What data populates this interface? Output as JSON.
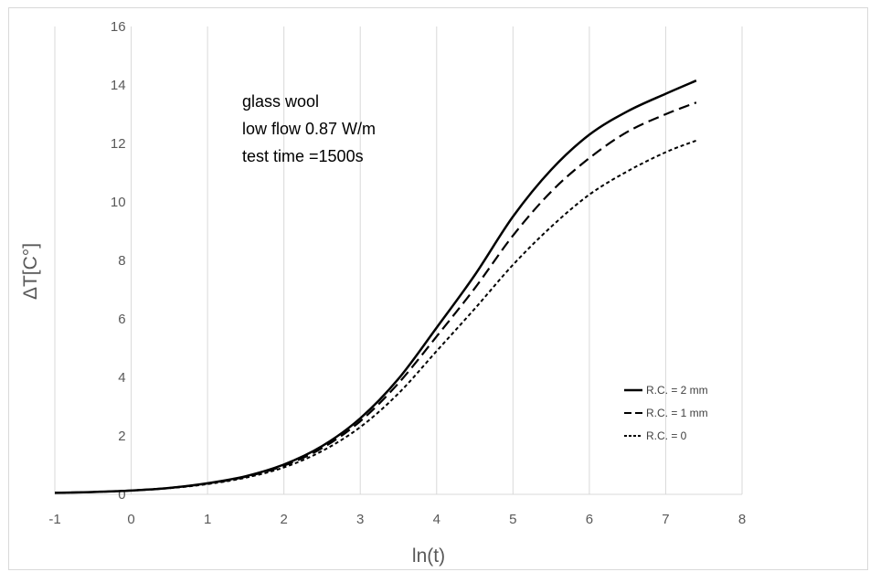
{
  "chart_data": {
    "type": "line",
    "xlabel": "ln(t)",
    "ylabel": "ΔT[C°]",
    "xlim": [
      -1,
      8
    ],
    "ylim": [
      0,
      16
    ],
    "xticks": [
      -1,
      0,
      1,
      2,
      3,
      4,
      5,
      6,
      7,
      8
    ],
    "yticks": [
      0,
      2,
      4,
      6,
      8,
      10,
      12,
      14,
      16
    ],
    "grid": "vertical",
    "legend_position": "bottom-right",
    "annotations": [
      "glass wool",
      "low flow 0.87 W/m",
      "test time =1500s"
    ],
    "series": [
      {
        "name": "R.C. = 2 mm",
        "line_style": "solid",
        "x": [
          -1,
          -0.5,
          0,
          0.5,
          1,
          1.5,
          2,
          2.5,
          3,
          3.5,
          4,
          4.5,
          5,
          5.5,
          6,
          6.5,
          7,
          7.4
        ],
        "values": [
          0.05,
          0.08,
          0.13,
          0.22,
          0.38,
          0.62,
          1.02,
          1.65,
          2.6,
          3.95,
          5.7,
          7.5,
          9.5,
          11.1,
          12.3,
          13.1,
          13.7,
          14.15
        ]
      },
      {
        "name": "R.C. = 1 mm",
        "line_style": "dashed",
        "x": [
          -1,
          -0.5,
          0,
          0.5,
          1,
          1.5,
          2,
          2.5,
          3,
          3.5,
          4,
          4.5,
          5,
          5.5,
          6,
          6.5,
          7,
          7.4
        ],
        "values": [
          0.05,
          0.08,
          0.13,
          0.22,
          0.37,
          0.6,
          0.98,
          1.58,
          2.5,
          3.8,
          5.4,
          7.05,
          8.85,
          10.35,
          11.5,
          12.4,
          13.0,
          13.4
        ]
      },
      {
        "name": "R.C. = 0",
        "line_style": "dotted",
        "x": [
          -1,
          -0.5,
          0,
          0.5,
          1,
          1.5,
          2,
          2.5,
          3,
          3.5,
          4,
          4.5,
          5,
          5.5,
          6,
          6.5,
          7,
          7.4
        ],
        "values": [
          0.05,
          0.08,
          0.13,
          0.21,
          0.35,
          0.57,
          0.92,
          1.48,
          2.3,
          3.45,
          4.9,
          6.35,
          7.85,
          9.15,
          10.25,
          11.05,
          11.7,
          12.1
        ]
      }
    ]
  }
}
